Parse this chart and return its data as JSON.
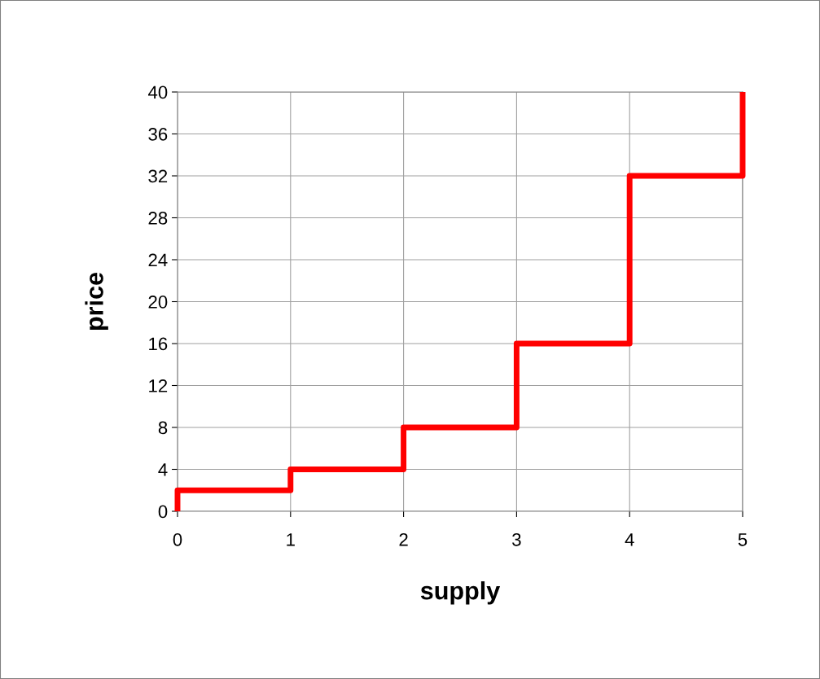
{
  "chart_data": {
    "type": "line",
    "xlabel": "supply",
    "ylabel": "price",
    "x": [
      0,
      0,
      1,
      1,
      2,
      2,
      3,
      3,
      4,
      4,
      5,
      5
    ],
    "series": [
      {
        "color": "#ff0000",
        "values": [
          0,
          2,
          2,
          4,
          4,
          8,
          8,
          16,
          16,
          32,
          32,
          40
        ]
      }
    ],
    "xlim": [
      0,
      5
    ],
    "xticks": [
      0,
      1,
      2,
      3,
      4,
      5
    ],
    "ylim": [
      0,
      40
    ],
    "yticks": [
      0,
      4,
      8,
      12,
      16,
      20,
      24,
      28,
      32,
      36,
      40
    ],
    "grid": true,
    "marker": "none",
    "line_style": "solid",
    "legend": false
  }
}
